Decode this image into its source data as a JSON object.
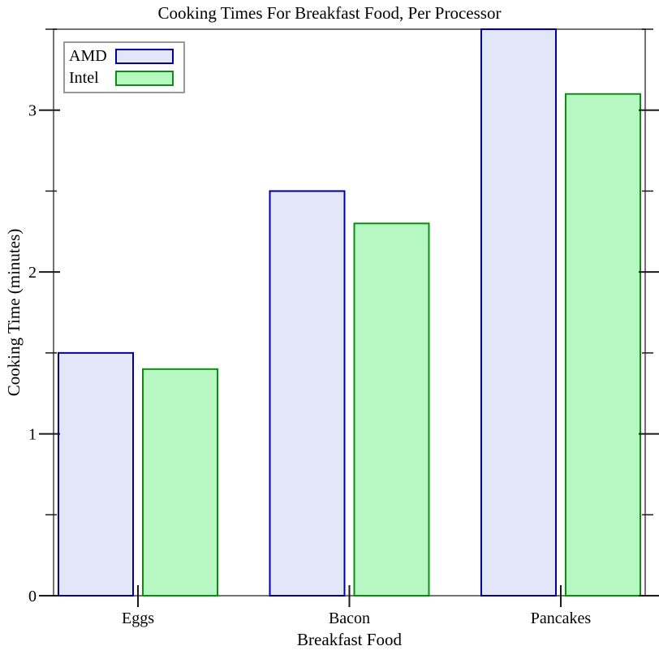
{
  "chart_data": {
    "type": "bar",
    "title": "Cooking Times For Breakfast Food, Per Processor",
    "xlabel": "Breakfast Food",
    "ylabel": "Cooking Time (minutes)",
    "categories": [
      "Eggs",
      "Bacon",
      "Pancakes"
    ],
    "series": [
      {
        "name": "AMD",
        "values": [
          1.5,
          2.5,
          3.5
        ],
        "fill": "#e3e6f9",
        "stroke": "#000099"
      },
      {
        "name": "Intel",
        "values": [
          1.4,
          2.3,
          3.1
        ],
        "fill": "#b7f7c2",
        "stroke": "#0d8c13"
      }
    ],
    "ylim": [
      0,
      3.5
    ],
    "y_major_ticks": [
      0,
      1,
      2,
      3
    ],
    "y_minor_ticks": [
      0.5,
      1.5,
      2.5,
      3.5
    ],
    "grid": false,
    "legend_position": "top-left",
    "frame_color": "#737373",
    "tick_color": "#1a1a1a"
  }
}
